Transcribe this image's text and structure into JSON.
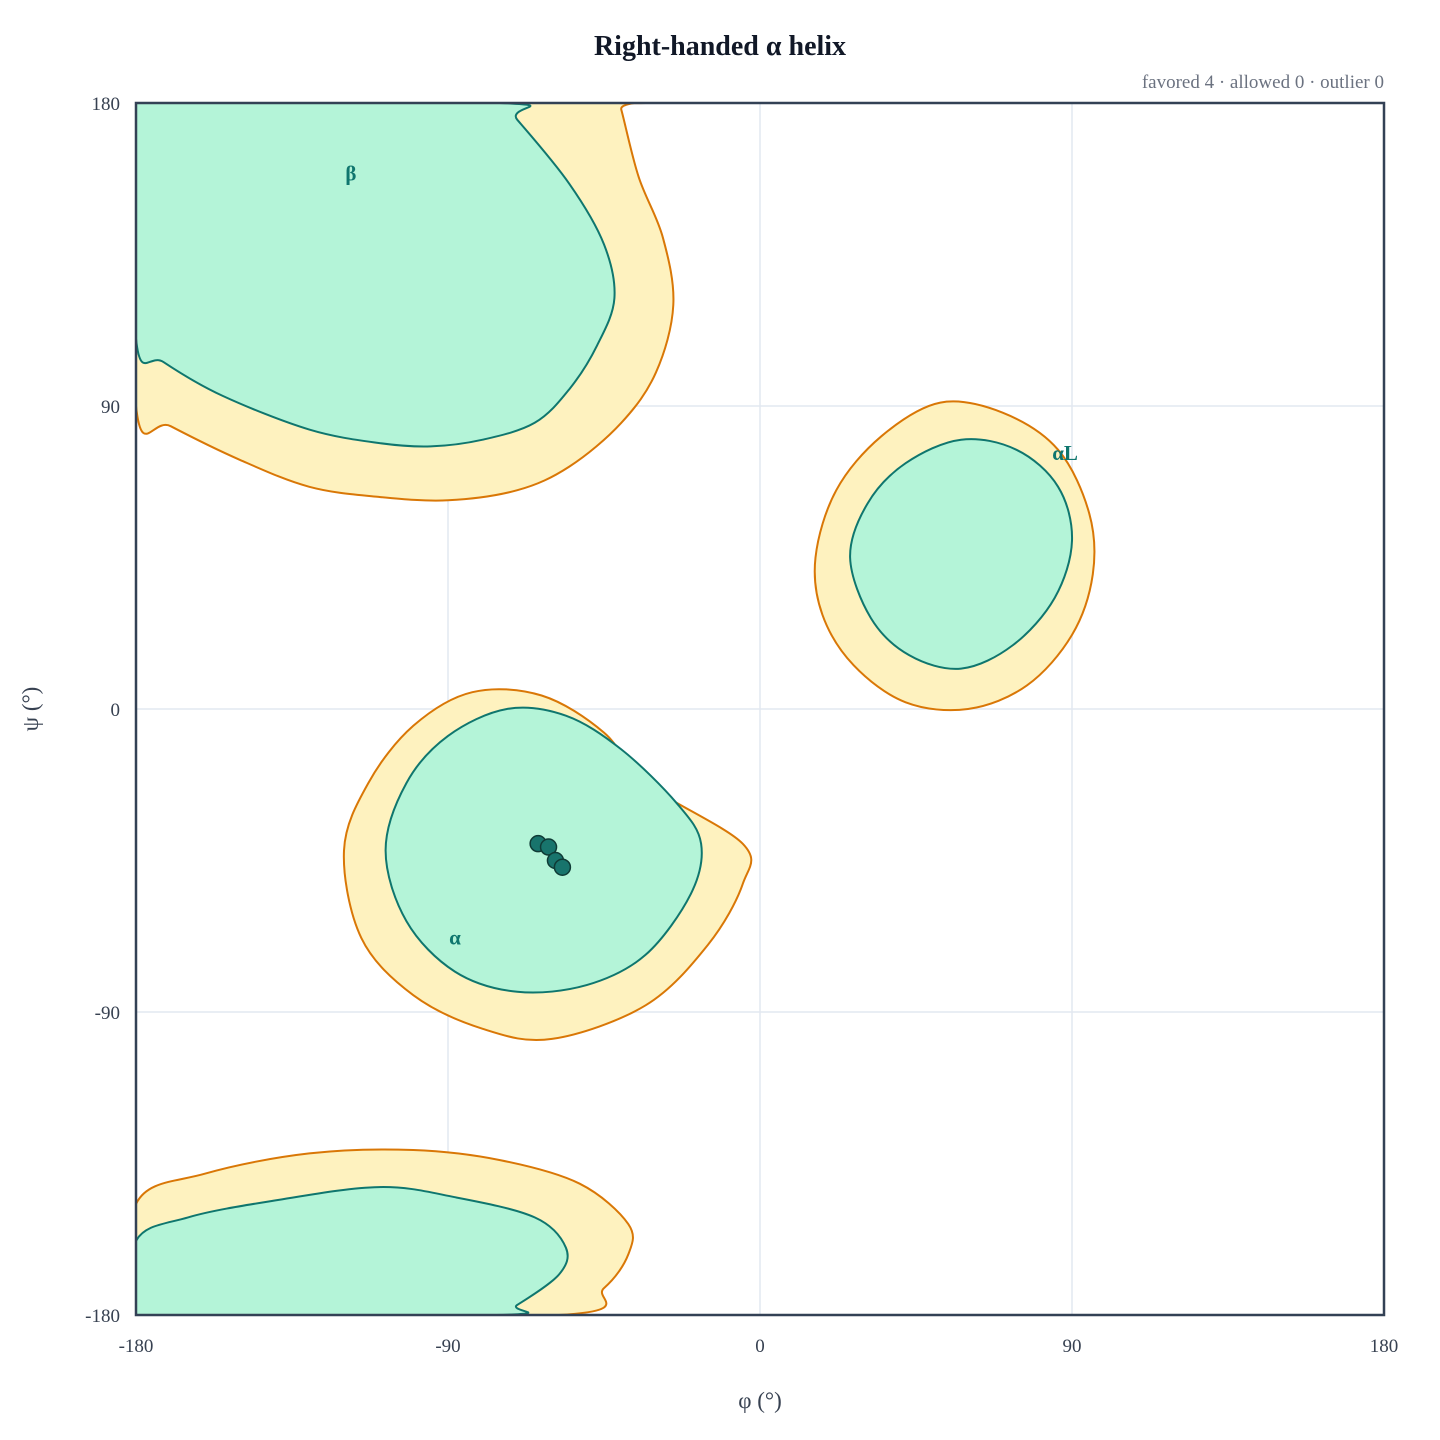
{
  "chart_data": {
    "type": "scatter",
    "title": "Right-handed α helix",
    "subtitle": "favored 4 · allowed 0 · outlier 0",
    "xlabel": "φ (°)",
    "ylabel": "ψ (°)",
    "xlim": [
      -180,
      180
    ],
    "ylim": [
      -180,
      180
    ],
    "xticks": [
      "-180",
      "-90",
      "0",
      "90",
      "180"
    ],
    "yticks": [
      "180",
      "90",
      "0",
      "-90",
      "-180"
    ],
    "grid": true,
    "regions": [
      {
        "label": "β",
        "label_phi": -118,
        "label_psi": 157,
        "allowed": [
          [
            -180,
            90
          ],
          [
            -170,
            84
          ],
          [
            -150,
            74
          ],
          [
            -130,
            66
          ],
          [
            -110,
            63
          ],
          [
            -90,
            62
          ],
          [
            -70,
            65
          ],
          [
            -55,
            72
          ],
          [
            -40,
            85
          ],
          [
            -30,
            100
          ],
          [
            -25,
            120
          ],
          [
            -28,
            140
          ],
          [
            -35,
            158
          ],
          [
            -40,
            178
          ],
          [
            -41,
            180
          ],
          [
            -180,
            180
          ]
        ],
        "favored": [
          [
            -180,
            110
          ],
          [
            -172,
            103
          ],
          [
            -155,
            93
          ],
          [
            -130,
            83
          ],
          [
            -110,
            79
          ],
          [
            -95,
            78
          ],
          [
            -80,
            80
          ],
          [
            -65,
            85
          ],
          [
            -55,
            95
          ],
          [
            -47,
            108
          ],
          [
            -42,
            122
          ],
          [
            -45,
            138
          ],
          [
            -55,
            156
          ],
          [
            -70,
            175
          ],
          [
            -75,
            180
          ],
          [
            -180,
            180
          ]
        ]
      },
      {
        "label": "α",
        "label_phi": -88,
        "label_psi": -70,
        "allowed": [
          [
            -120,
            -42
          ],
          [
            -113,
            -22
          ],
          [
            -100,
            -5
          ],
          [
            -83,
            5
          ],
          [
            -63,
            4
          ],
          [
            -45,
            -7
          ],
          [
            -33,
            -22
          ],
          [
            -5,
            -40
          ],
          [
            -5,
            -52
          ],
          [
            -15,
            -70
          ],
          [
            -33,
            -88
          ],
          [
            -60,
            -98
          ],
          [
            -80,
            -95
          ],
          [
            -100,
            -85
          ],
          [
            -115,
            -68
          ]
        ],
        "favored": [
          [
            -108,
            -42
          ],
          [
            -102,
            -22
          ],
          [
            -90,
            -8
          ],
          [
            -73,
            0
          ],
          [
            -56,
            -2
          ],
          [
            -40,
            -12
          ],
          [
            -24,
            -28
          ],
          [
            -17,
            -40
          ],
          [
            -20,
            -55
          ],
          [
            -33,
            -73
          ],
          [
            -50,
            -82
          ],
          [
            -70,
            -84
          ],
          [
            -88,
            -78
          ],
          [
            -102,
            -63
          ]
        ],
        "points": [
          [
            -64,
            -40
          ],
          [
            -61,
            -41
          ],
          [
            -59,
            -45
          ],
          [
            -57,
            -47
          ]
        ]
      },
      {
        "label": "αL",
        "label_phi": 88,
        "label_psi": 74,
        "allowed": [
          [
            16,
            45
          ],
          [
            22,
            65
          ],
          [
            35,
            81
          ],
          [
            52,
            91
          ],
          [
            70,
            88
          ],
          [
            86,
            77
          ],
          [
            95,
            58
          ],
          [
            96,
            40
          ],
          [
            90,
            22
          ],
          [
            77,
            7
          ],
          [
            60,
            0
          ],
          [
            42,
            2
          ],
          [
            27,
            13
          ],
          [
            18,
            28
          ]
        ],
        "favored": [
          [
            26,
            45
          ],
          [
            31,
            61
          ],
          [
            42,
            73
          ],
          [
            58,
            80
          ],
          [
            74,
            77
          ],
          [
            86,
            66
          ],
          [
            90,
            50
          ],
          [
            85,
            33
          ],
          [
            73,
            19
          ],
          [
            58,
            12
          ],
          [
            43,
            16
          ],
          [
            32,
            27
          ]
        ]
      },
      {
        "label": "",
        "label_phi": 0,
        "label_psi": 0,
        "allowed": [
          [
            -180,
            -147
          ],
          [
            -160,
            -138
          ],
          [
            -130,
            -132
          ],
          [
            -100,
            -131
          ],
          [
            -75,
            -134
          ],
          [
            -52,
            -141
          ],
          [
            -38,
            -153
          ],
          [
            -38,
            -162
          ],
          [
            -45,
            -172
          ],
          [
            -58,
            -180
          ],
          [
            -180,
            -180
          ]
        ],
        "favored": [
          [
            -180,
            -158
          ],
          [
            -165,
            -151
          ],
          [
            -140,
            -146
          ],
          [
            -110,
            -142
          ],
          [
            -88,
            -145
          ],
          [
            -65,
            -151
          ],
          [
            -56,
            -160
          ],
          [
            -58,
            -168
          ],
          [
            -70,
            -177
          ],
          [
            -76,
            -180
          ],
          [
            -180,
            -180
          ]
        ]
      }
    ],
    "colors": {
      "favored_fill": "#b4f4d8",
      "favored_stroke": "#0f766e",
      "allowed_fill": "#fef2bf",
      "allowed_stroke": "#d97706",
      "point_fill": "#18746c",
      "point_stroke": "#0f3b36",
      "label": "#0f766e",
      "frame": "#334155",
      "grid": "#e2e8f0"
    }
  }
}
